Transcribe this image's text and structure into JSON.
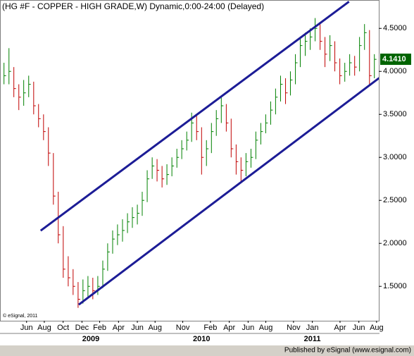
{
  "chart_data": {
    "type": "hlc",
    "title": "(HG #F - COPPER - HIGH GRADE,W) Dynamic,0:00-24:00 (Delayed)",
    "copyright": "© eSignal, 2011",
    "footer": "Published by eSignal (www.esignal.com)",
    "x": [
      2008.216,
      2008.261,
      2008.305,
      2008.35,
      2008.394,
      2008.439,
      2008.484,
      2008.528,
      2008.573,
      2008.617,
      2008.662,
      2008.706,
      2008.751,
      2008.796,
      2008.84,
      2008.885,
      2008.929,
      2008.974,
      2009.018,
      2009.063,
      2009.108,
      2009.152,
      2009.197,
      2009.241,
      2009.286,
      2009.331,
      2009.375,
      2009.42,
      2009.464,
      2009.509,
      2009.554,
      2009.598,
      2009.643,
      2009.687,
      2009.732,
      2009.777,
      2009.821,
      2009.866,
      2009.91,
      2009.955,
      2010.0,
      2010.044,
      2010.089,
      2010.133,
      2010.178,
      2010.223,
      2010.267,
      2010.312,
      2010.356,
      2010.401,
      2010.446,
      2010.49,
      2010.535,
      2010.579,
      2010.624,
      2010.668,
      2010.713,
      2010.758,
      2010.802,
      2010.847,
      2010.891,
      2010.936,
      2010.981,
      2011.025,
      2011.07,
      2011.114,
      2011.159,
      2011.203,
      2011.248,
      2011.293,
      2011.337,
      2011.382,
      2011.426,
      2011.471,
      2011.516,
      2011.56
    ],
    "high": [
      4.1,
      4.27,
      4.05,
      3.85,
      3.9,
      3.95,
      3.88,
      3.62,
      3.5,
      3.35,
      3.05,
      2.6,
      2.2,
      1.85,
      1.7,
      1.55,
      1.58,
      1.62,
      1.6,
      1.62,
      1.8,
      2.0,
      2.15,
      2.22,
      2.28,
      2.35,
      2.42,
      2.45,
      2.6,
      2.85,
      3.0,
      2.98,
      2.9,
      2.92,
      3.0,
      3.1,
      3.2,
      3.3,
      3.52,
      3.5,
      3.35,
      3.2,
      3.4,
      3.55,
      3.7,
      3.62,
      3.45,
      3.15,
      3.0,
      3.05,
      3.1,
      3.3,
      3.4,
      3.5,
      3.65,
      3.8,
      3.95,
      3.92,
      4.0,
      4.2,
      4.4,
      4.45,
      4.5,
      4.62,
      4.55,
      4.4,
      4.42,
      4.35,
      4.15,
      4.1,
      4.2,
      4.18,
      4.4,
      4.55,
      4.48,
      4.2
    ],
    "low": [
      3.85,
      3.85,
      3.7,
      3.55,
      3.6,
      3.7,
      3.5,
      3.35,
      3.2,
      2.9,
      2.45,
      2.0,
      1.6,
      1.5,
      1.4,
      1.25,
      1.3,
      1.38,
      1.35,
      1.4,
      1.48,
      1.68,
      1.88,
      1.98,
      2.02,
      2.12,
      2.18,
      2.22,
      2.32,
      2.48,
      2.75,
      2.72,
      2.65,
      2.68,
      2.78,
      2.88,
      2.98,
      3.08,
      3.18,
      3.2,
      2.8,
      2.9,
      3.05,
      3.25,
      3.4,
      3.3,
      3.0,
      2.8,
      2.7,
      2.78,
      2.88,
      2.98,
      3.15,
      3.28,
      3.38,
      3.5,
      3.65,
      3.62,
      3.72,
      3.85,
      4.05,
      4.18,
      4.25,
      4.35,
      4.25,
      4.05,
      4.12,
      4.0,
      3.85,
      3.88,
      3.95,
      3.95,
      4.0,
      4.25,
      3.85,
      3.92
    ],
    "close": [
      3.95,
      4.0,
      3.8,
      3.7,
      3.75,
      3.85,
      3.6,
      3.45,
      3.3,
      3.05,
      2.55,
      2.1,
      1.7,
      1.6,
      1.5,
      1.35,
      1.45,
      1.5,
      1.45,
      1.5,
      1.7,
      1.9,
      2.05,
      2.1,
      2.15,
      2.25,
      2.3,
      2.35,
      2.5,
      2.75,
      2.9,
      2.85,
      2.75,
      2.8,
      2.9,
      3.0,
      3.1,
      3.2,
      3.4,
      3.3,
      3.0,
      3.1,
      3.3,
      3.45,
      3.6,
      3.4,
      3.1,
      2.95,
      2.85,
      2.95,
      3.0,
      3.2,
      3.3,
      3.4,
      3.55,
      3.7,
      3.85,
      3.75,
      3.9,
      4.1,
      4.3,
      4.35,
      4.4,
      4.5,
      4.35,
      4.2,
      4.3,
      4.1,
      3.95,
      4.0,
      4.1,
      4.05,
      4.3,
      4.45,
      3.95,
      4.14
    ],
    "up_color": "#008000",
    "down_color": "#c00000",
    "trendlines": [
      {
        "x": [
          2008.547,
          2011.331
        ],
        "y": [
          2.148,
          4.811
        ]
      },
      {
        "x": [
          2008.891,
          2011.604
        ],
        "y": [
          1.287,
          3.924
        ]
      }
    ],
    "trendline_color": "#1c1c96",
    "last_price": {
      "value": 4.141,
      "label": "4.1410"
    },
    "last_price_color": "#006400",
    "xlim": [
      2008.18,
      2011.6
    ],
    "ylim": [
      1.1,
      4.83
    ],
    "yticks": [
      {
        "value": 1.5,
        "label": "1.5000"
      },
      {
        "value": 2,
        "label": "2.0000"
      },
      {
        "value": 2.5,
        "label": "2.5000"
      },
      {
        "value": 3,
        "label": "3.0000"
      },
      {
        "value": 3.5,
        "label": "3.5000"
      },
      {
        "value": 4,
        "label": "4.0000"
      },
      {
        "value": 4.5,
        "label": "4.5000"
      }
    ],
    "xticks": [
      {
        "value": 2008.42,
        "label": "Jun"
      },
      {
        "value": 2008.58,
        "label": "Aug"
      },
      {
        "value": 2008.75,
        "label": "Oct"
      },
      {
        "value": 2008.92,
        "label": "Dec"
      },
      {
        "value": 2009.08,
        "label": "Feb"
      },
      {
        "value": 2009.25,
        "label": "Apr"
      },
      {
        "value": 2009.42,
        "label": "Jun"
      },
      {
        "value": 2009.58,
        "label": "Aug"
      },
      {
        "value": 2009.83,
        "label": "Nov"
      },
      {
        "value": 2010.08,
        "label": "Feb"
      },
      {
        "value": 2010.25,
        "label": "Apr"
      },
      {
        "value": 2010.42,
        "label": "Jun"
      },
      {
        "value": 2010.58,
        "label": "Aug"
      },
      {
        "value": 2010.83,
        "label": "Nov"
      },
      {
        "value": 2011.0,
        "label": "Jan"
      },
      {
        "value": 2011.25,
        "label": "Apr"
      },
      {
        "value": 2011.42,
        "label": "Jun"
      },
      {
        "value": 2011.58,
        "label": "Aug"
      }
    ],
    "year_ticks": [
      2009,
      2010,
      2011
    ]
  }
}
